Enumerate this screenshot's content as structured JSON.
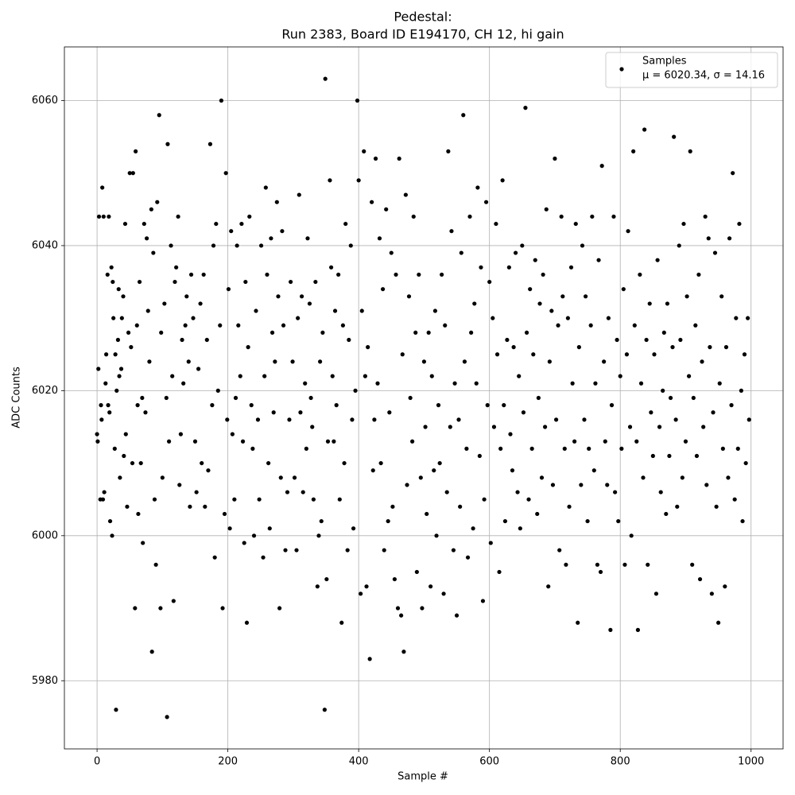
{
  "chart_data": {
    "type": "scatter",
    "title": "Pedestal:",
    "subtitle": "Run 2383, Board ID E194170, CH 12, hi gain",
    "x_label": "Sample #",
    "y_label": "ADC Counts",
    "xlim": [
      -49.95,
      1048.95
    ],
    "ylim": [
      5970.6,
      6067.4
    ],
    "xticks": [
      0,
      200,
      400,
      600,
      800,
      1000
    ],
    "yticks": [
      5980,
      6000,
      6020,
      6040,
      6060
    ],
    "grid": true,
    "legend": "upper right",
    "annotation": "μ = 6020.34, σ = 14.16",
    "series": [
      {
        "name": "Samples",
        "color": "#000000",
        "x": [
          0,
          1,
          2,
          3,
          5,
          6,
          7,
          8,
          9,
          10,
          11,
          13,
          14,
          16,
          17,
          18,
          19,
          20,
          22,
          23,
          24,
          25,
          27,
          28,
          29,
          30,
          32,
          33,
          34,
          35,
          37,
          38,
          40,
          41,
          43,
          44,
          46,
          48,
          50,
          52,
          54,
          55,
          58,
          59,
          61,
          62,
          63,
          65,
          67,
          69,
          70,
          72,
          74,
          76,
          78,
          80,
          83,
          84,
          86,
          88,
          90,
          92,
          95,
          97,
          98,
          100,
          103,
          106,
          107,
          108,
          110,
          113,
          115,
          117,
          119,
          121,
          124,
          126,
          128,
          130,
          132,
          135,
          137,
          140,
          142,
          144,
          147,
          150,
          152,
          155,
          158,
          160,
          163,
          165,
          168,
          170,
          173,
          176,
          178,
          180,
          182,
          185,
          188,
          190,
          192,
          195,
          197,
          199,
          201,
          203,
          205,
          207,
          210,
          212,
          214,
          216,
          219,
          221,
          223,
          225,
          227,
          229,
          231,
          233,
          236,
          238,
          240,
          243,
          246,
          248,
          251,
          254,
          256,
          258,
          260,
          262,
          264,
          266,
          268,
          270,
          272,
          275,
          277,
          279,
          281,
          283,
          285,
          288,
          291,
          294,
          296,
          299,
          302,
          305,
          307,
          309,
          311,
          313,
          315,
          318,
          320,
          322,
          325,
          327,
          329,
          331,
          334,
          337,
          339,
          341,
          343,
          345,
          348,
          349,
          351,
          353,
          356,
          358,
          360,
          362,
          364,
          366,
          369,
          371,
          374,
          376,
          378,
          380,
          383,
          385,
          388,
          390,
          392,
          395,
          398,
          400,
          403,
          405,
          408,
          410,
          412,
          414,
          417,
          420,
          422,
          424,
          426,
          429,
          432,
          434,
          437,
          439,
          442,
          445,
          447,
          450,
          452,
          455,
          457,
          460,
          462,
          465,
          467,
          469,
          472,
          474,
          477,
          479,
          482,
          484,
          487,
          489,
          492,
          495,
          497,
          500,
          502,
          504,
          507,
          510,
          512,
          515,
          517,
          519,
          522,
          524,
          527,
          530,
          532,
          535,
          537,
          540,
          542,
          545,
          547,
          550,
          553,
          555,
          557,
          560,
          562,
          565,
          567,
          570,
          572,
          575,
          577,
          580,
          582,
          585,
          587,
          590,
          592,
          595,
          597,
          600,
          602,
          605,
          607,
          610,
          612,
          615,
          617,
          620,
          622,
          624,
          627,
          630,
          632,
          635,
          637,
          640,
          643,
          645,
          647,
          650,
          652,
          655,
          657,
          660,
          662,
          665,
          667,
          670,
          673,
          675,
          677,
          680,
          682,
          685,
          687,
          690,
          692,
          695,
          697,
          700,
          702,
          705,
          707,
          710,
          712,
          715,
          717,
          720,
          722,
          725,
          727,
          730,
          732,
          735,
          737,
          740,
          742,
          745,
          747,
          750,
          752,
          755,
          757,
          760,
          762,
          765,
          767,
          770,
          772,
          775,
          777,
          780,
          782,
          785,
          787,
          790,
          792,
          795,
          797,
          800,
          802,
          805,
          807,
          810,
          812,
          815,
          817,
          820,
          822,
          825,
          827,
          830,
          832,
          835,
          837,
          840,
          842,
          845,
          847,
          850,
          852,
          855,
          857,
          860,
          862,
          865,
          867,
          870,
          872,
          875,
          877,
          880,
          882,
          885,
          887,
          890,
          892,
          895,
          897,
          900,
          902,
          905,
          907,
          910,
          912,
          915,
          917,
          920,
          922,
          925,
          927,
          930,
          932,
          935,
          937,
          940,
          942,
          945,
          947,
          950,
          952,
          955,
          957,
          960,
          962,
          965,
          967,
          970,
          972,
          975,
          977,
          980,
          982,
          985,
          987,
          990,
          992,
          995,
          997
        ],
        "values": [
          6014,
          6013,
          6023,
          6044,
          6005,
          6018,
          6016,
          6048,
          6005,
          6044,
          6006,
          6021,
          6025,
          6036,
          6018,
          6044,
          6017,
          6002,
          6037,
          6000,
          6035,
          6030,
          6012,
          6025,
          5976,
          6020,
          6027,
          6034,
          6022,
          6008,
          6023,
          6030,
          6033,
          6011,
          6043,
          6014,
          6004,
          6028,
          6050,
          6026,
          6010,
          6050,
          5990,
          6053,
          6029,
          6018,
          6003,
          6035,
          6010,
          6019,
          5999,
          6043,
          6017,
          6041,
          6031,
          6024,
          6045,
          5984,
          6039,
          6005,
          5996,
          6046,
          6058,
          5990,
          6028,
          6008,
          6032,
          6019,
          5975,
          6054,
          6013,
          6040,
          6022,
          5991,
          6035,
          6037,
          6044,
          6007,
          6014,
          6027,
          6021,
          6029,
          6033,
          6024,
          6004,
          6036,
          6030,
          6013,
          6006,
          6023,
          6032,
          6010,
          6036,
          6004,
          6027,
          6009,
          6054,
          6018,
          6040,
          5997,
          6043,
          6020,
          6029,
          6060,
          5990,
          6003,
          6050,
          6016,
          6034,
          6001,
          6042,
          6014,
          6005,
          6019,
          6040,
          6029,
          6022,
          6043,
          6013,
          5999,
          6035,
          5988,
          6026,
          6044,
          6018,
          6012,
          6000,
          6031,
          6016,
          6005,
          6040,
          5997,
          6022,
          6048,
          6036,
          6010,
          6001,
          6041,
          6028,
          6017,
          6024,
          6046,
          6033,
          5990,
          6008,
          6042,
          6029,
          5998,
          6006,
          6016,
          6035,
          6024,
          6008,
          5998,
          6030,
          6047,
          6017,
          6033,
          6006,
          6021,
          6012,
          6041,
          6032,
          6019,
          6015,
          6005,
          6035,
          5993,
          6000,
          6024,
          6002,
          6028,
          5976,
          6063,
          5994,
          6013,
          6049,
          6037,
          6022,
          6013,
          6031,
          6018,
          6036,
          6005,
          5988,
          6029,
          6010,
          6043,
          5998,
          6027,
          6040,
          6016,
          6001,
          6020,
          6060,
          6049,
          5992,
          6031,
          6053,
          6022,
          5993,
          6026,
          5983,
          6046,
          6009,
          6016,
          6052,
          6021,
          6041,
          6010,
          6034,
          5998,
          6045,
          6002,
          6017,
          6039,
          6004,
          5994,
          6036,
          5990,
          6052,
          5989,
          6025,
          5984,
          6047,
          6007,
          6033,
          6019,
          6013,
          6044,
          6028,
          5995,
          6036,
          6008,
          5990,
          6024,
          6015,
          6003,
          6028,
          5993,
          6022,
          6009,
          6031,
          6000,
          6018,
          6010,
          6036,
          5992,
          6029,
          6006,
          6053,
          6015,
          6042,
          5998,
          6021,
          5989,
          6016,
          6004,
          6039,
          6058,
          6024,
          6012,
          5997,
          6044,
          6028,
          6001,
          6032,
          6021,
          6048,
          6011,
          6037,
          5991,
          6005,
          6046,
          6018,
          6035,
          5999,
          6030,
          6015,
          6043,
          6025,
          5995,
          6012,
          6049,
          6018,
          6002,
          6027,
          6037,
          6014,
          6009,
          6026,
          6039,
          6006,
          6022,
          6001,
          6040,
          6017,
          6059,
          6028,
          6005,
          6034,
          6012,
          6025,
          6038,
          6003,
          6019,
          6032,
          6008,
          6036,
          6015,
          6045,
          5993,
          6024,
          6031,
          6007,
          6052,
          6016,
          6029,
          5998,
          6044,
          6033,
          6012,
          5996,
          6030,
          6004,
          6037,
          6021,
          6013,
          6043,
          5988,
          6026,
          6007,
          6040,
          6016,
          6033,
          6002,
          6012,
          6029,
          6044,
          6009,
          6021,
          5996,
          6038,
          5995,
          6051,
          6024,
          6013,
          6007,
          6030,
          5987,
          6018,
          6044,
          6006,
          6027,
          6002,
          6022,
          6012,
          6034,
          5996,
          6025,
          6042,
          6015,
          6000,
          6053,
          6029,
          6013,
          5987,
          6036,
          6021,
          6008,
          6056,
          6027,
          5996,
          6032,
          6017,
          6011,
          6025,
          5992,
          6038,
          6015,
          6006,
          6020,
          6028,
          6003,
          6032,
          6011,
          6019,
          6026,
          6055,
          6016,
          6004,
          6040,
          6027,
          6008,
          6043,
          6013,
          6033,
          6022,
          6053,
          5996,
          6019,
          6029,
          6011,
          6036,
          5994,
          6024,
          6015,
          6044,
          6007,
          6041,
          6026,
          5992,
          6017,
          6039,
          6004,
          5988,
          6021,
          6033,
          6012,
          5993,
          6026,
          6008,
          6041,
          6018,
          6050,
          6005,
          6030,
          6012,
          6043,
          6020,
          6002,
          6025,
          6010,
          6030,
          6016
        ]
      }
    ]
  }
}
